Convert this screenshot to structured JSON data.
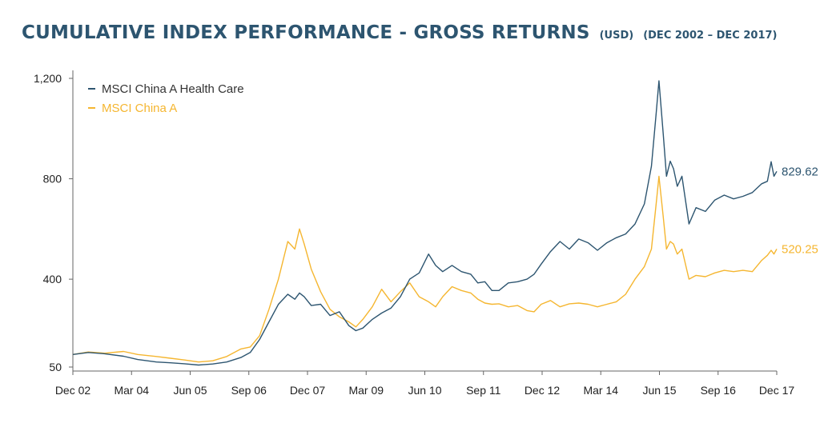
{
  "header": {
    "title": "CUMULATIVE INDEX PERFORMANCE - GROSS RETURNS",
    "currency": "(USD)",
    "period": "(DEC 2002 – DEC 2017)"
  },
  "colors": {
    "health_care": "#2d5570",
    "china_a": "#f5b630",
    "axis": "#666666"
  },
  "chart_data": {
    "type": "line",
    "title": "CUMULATIVE INDEX PERFORMANCE - GROSS RETURNS (USD) (DEC 2002 – DEC 2017)",
    "xlabel": "",
    "ylabel": "",
    "ylim": [
      50,
      1200
    ],
    "y_ticks": [
      50,
      400,
      800,
      1200
    ],
    "y_tick_labels": [
      "50",
      "400",
      "800",
      "1,200"
    ],
    "x_range": [
      2002.92,
      2017.92
    ],
    "x_ticks": [
      2002.92,
      2004.17,
      2005.42,
      2006.67,
      2007.92,
      2009.17,
      2010.42,
      2011.67,
      2012.92,
      2014.17,
      2015.42,
      2016.67,
      2017.92
    ],
    "x_tick_labels": [
      "Dec 02",
      "Mar 04",
      "Jun 05",
      "Sep 06",
      "Dec 07",
      "Mar 09",
      "Jun 10",
      "Sep 11",
      "Dec 12",
      "Mar 14",
      "Jun 15",
      "Sep 16",
      "Dec 17"
    ],
    "grid": false,
    "legend": "top-left",
    "series": [
      {
        "name": "MSCI China A Health Care",
        "end_label": "829.62",
        "points": [
          [
            2002.92,
            100
          ],
          [
            2003.25,
            108
          ],
          [
            2003.6,
            103
          ],
          [
            2004.0,
            93
          ],
          [
            2004.3,
            80
          ],
          [
            2004.7,
            70
          ],
          [
            2005.0,
            67
          ],
          [
            2005.3,
            63
          ],
          [
            2005.6,
            58
          ],
          [
            2005.9,
            62
          ],
          [
            2006.2,
            70
          ],
          [
            2006.5,
            88
          ],
          [
            2006.7,
            108
          ],
          [
            2006.9,
            160
          ],
          [
            2007.1,
            230
          ],
          [
            2007.3,
            300
          ],
          [
            2007.5,
            340
          ],
          [
            2007.65,
            320
          ],
          [
            2007.75,
            345
          ],
          [
            2007.85,
            330
          ],
          [
            2008.0,
            295
          ],
          [
            2008.2,
            300
          ],
          [
            2008.4,
            255
          ],
          [
            2008.6,
            270
          ],
          [
            2008.8,
            215
          ],
          [
            2008.95,
            195
          ],
          [
            2009.1,
            205
          ],
          [
            2009.3,
            240
          ],
          [
            2009.5,
            265
          ],
          [
            2009.7,
            285
          ],
          [
            2009.9,
            330
          ],
          [
            2010.1,
            400
          ],
          [
            2010.3,
            425
          ],
          [
            2010.5,
            500
          ],
          [
            2010.65,
            455
          ],
          [
            2010.8,
            430
          ],
          [
            2011.0,
            455
          ],
          [
            2011.2,
            430
          ],
          [
            2011.4,
            420
          ],
          [
            2011.55,
            385
          ],
          [
            2011.7,
            390
          ],
          [
            2011.85,
            355
          ],
          [
            2012.0,
            355
          ],
          [
            2012.2,
            385
          ],
          [
            2012.4,
            390
          ],
          [
            2012.6,
            400
          ],
          [
            2012.75,
            420
          ],
          [
            2012.9,
            460
          ],
          [
            2013.1,
            510
          ],
          [
            2013.3,
            550
          ],
          [
            2013.5,
            520
          ],
          [
            2013.7,
            560
          ],
          [
            2013.9,
            545
          ],
          [
            2014.1,
            515
          ],
          [
            2014.3,
            545
          ],
          [
            2014.5,
            565
          ],
          [
            2014.7,
            580
          ],
          [
            2014.9,
            620
          ],
          [
            2015.1,
            700
          ],
          [
            2015.25,
            850
          ],
          [
            2015.35,
            1060
          ],
          [
            2015.41,
            1190
          ],
          [
            2015.5,
            980
          ],
          [
            2015.57,
            810
          ],
          [
            2015.65,
            870
          ],
          [
            2015.72,
            840
          ],
          [
            2015.8,
            770
          ],
          [
            2015.9,
            810
          ],
          [
            2016.05,
            620
          ],
          [
            2016.2,
            685
          ],
          [
            2016.4,
            670
          ],
          [
            2016.6,
            715
          ],
          [
            2016.8,
            735
          ],
          [
            2017.0,
            720
          ],
          [
            2017.2,
            730
          ],
          [
            2017.4,
            745
          ],
          [
            2017.6,
            780
          ],
          [
            2017.72,
            790
          ],
          [
            2017.8,
            868
          ],
          [
            2017.86,
            810
          ],
          [
            2017.92,
            829.62
          ]
        ]
      },
      {
        "name": "MSCI China A",
        "end_label": "520.25",
        "points": [
          [
            2002.92,
            100
          ],
          [
            2003.25,
            110
          ],
          [
            2003.6,
            105
          ],
          [
            2004.0,
            112
          ],
          [
            2004.3,
            100
          ],
          [
            2004.7,
            92
          ],
          [
            2005.0,
            85
          ],
          [
            2005.3,
            78
          ],
          [
            2005.6,
            70
          ],
          [
            2005.9,
            75
          ],
          [
            2006.2,
            92
          ],
          [
            2006.5,
            122
          ],
          [
            2006.7,
            130
          ],
          [
            2006.9,
            175
          ],
          [
            2007.1,
            280
          ],
          [
            2007.3,
            400
          ],
          [
            2007.5,
            550
          ],
          [
            2007.65,
            520
          ],
          [
            2007.75,
            600
          ],
          [
            2007.85,
            540
          ],
          [
            2008.0,
            440
          ],
          [
            2008.2,
            350
          ],
          [
            2008.4,
            280
          ],
          [
            2008.6,
            250
          ],
          [
            2008.8,
            230
          ],
          [
            2008.95,
            210
          ],
          [
            2009.1,
            240
          ],
          [
            2009.3,
            290
          ],
          [
            2009.5,
            360
          ],
          [
            2009.7,
            310
          ],
          [
            2009.9,
            350
          ],
          [
            2010.1,
            385
          ],
          [
            2010.3,
            330
          ],
          [
            2010.5,
            310
          ],
          [
            2010.65,
            290
          ],
          [
            2010.8,
            330
          ],
          [
            2011.0,
            370
          ],
          [
            2011.2,
            355
          ],
          [
            2011.4,
            345
          ],
          [
            2011.55,
            320
          ],
          [
            2011.7,
            305
          ],
          [
            2011.85,
            300
          ],
          [
            2012.0,
            302
          ],
          [
            2012.2,
            290
          ],
          [
            2012.4,
            295
          ],
          [
            2012.6,
            275
          ],
          [
            2012.75,
            270
          ],
          [
            2012.9,
            300
          ],
          [
            2013.1,
            315
          ],
          [
            2013.3,
            290
          ],
          [
            2013.5,
            302
          ],
          [
            2013.7,
            305
          ],
          [
            2013.9,
            300
          ],
          [
            2014.1,
            290
          ],
          [
            2014.3,
            300
          ],
          [
            2014.5,
            310
          ],
          [
            2014.7,
            340
          ],
          [
            2014.9,
            400
          ],
          [
            2015.1,
            450
          ],
          [
            2015.25,
            520
          ],
          [
            2015.35,
            700
          ],
          [
            2015.41,
            810
          ],
          [
            2015.5,
            650
          ],
          [
            2015.57,
            520
          ],
          [
            2015.65,
            550
          ],
          [
            2015.72,
            540
          ],
          [
            2015.8,
            500
          ],
          [
            2015.9,
            520
          ],
          [
            2016.05,
            400
          ],
          [
            2016.2,
            415
          ],
          [
            2016.4,
            410
          ],
          [
            2016.6,
            425
          ],
          [
            2016.8,
            435
          ],
          [
            2017.0,
            430
          ],
          [
            2017.2,
            435
          ],
          [
            2017.4,
            430
          ],
          [
            2017.6,
            475
          ],
          [
            2017.72,
            495
          ],
          [
            2017.8,
            515
          ],
          [
            2017.86,
            500
          ],
          [
            2017.92,
            520.25
          ]
        ]
      }
    ]
  }
}
